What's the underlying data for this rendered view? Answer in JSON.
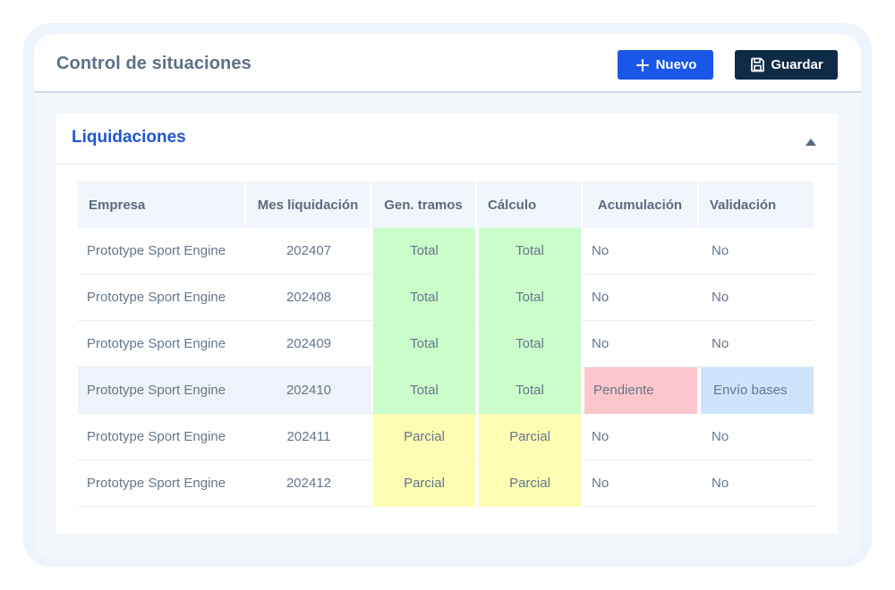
{
  "header": {
    "title": "Control de situaciones",
    "new_label": "Nuevo",
    "save_label": "Guardar"
  },
  "colors": {
    "primary": "#1a56e8",
    "dark": "#0f2a46",
    "status_total": "#cbfdcb",
    "status_parcial": "#fdfdb4",
    "status_pendiente": "#fcc7cc",
    "status_envio": "#cde4fb"
  },
  "panel": {
    "title": "Liquidaciones",
    "columns": [
      "Empresa",
      "Mes liquidación",
      "Gen. tramos",
      "Cálculo",
      "Acumulación",
      "Validación"
    ],
    "rows": [
      {
        "empresa": "Prototype Sport Engine",
        "mes": "202407",
        "tramos": "Total",
        "calculo": "Total",
        "acumulacion": "No",
        "validacion": "No"
      },
      {
        "empresa": "Prototype Sport Engine",
        "mes": "202408",
        "tramos": "Total",
        "calculo": "Total",
        "acumulacion": "No",
        "validacion": "No"
      },
      {
        "empresa": "Prototype Sport Engine",
        "mes": "202409",
        "tramos": "Total",
        "calculo": "Total",
        "acumulacion": "No",
        "validacion": "No"
      },
      {
        "empresa": "Prototype Sport Engine",
        "mes": "202410",
        "tramos": "Total",
        "calculo": "Total",
        "acumulacion": "Pendiente",
        "validacion": "Envío bases"
      },
      {
        "empresa": "Prototype Sport Engine",
        "mes": "202411",
        "tramos": "Parcial",
        "calculo": "Parcial",
        "acumulacion": "No",
        "validacion": "No"
      },
      {
        "empresa": "Prototype Sport Engine",
        "mes": "202412",
        "tramos": "Parcial",
        "calculo": "Parcial",
        "acumulacion": "No",
        "validacion": "No"
      }
    ]
  }
}
